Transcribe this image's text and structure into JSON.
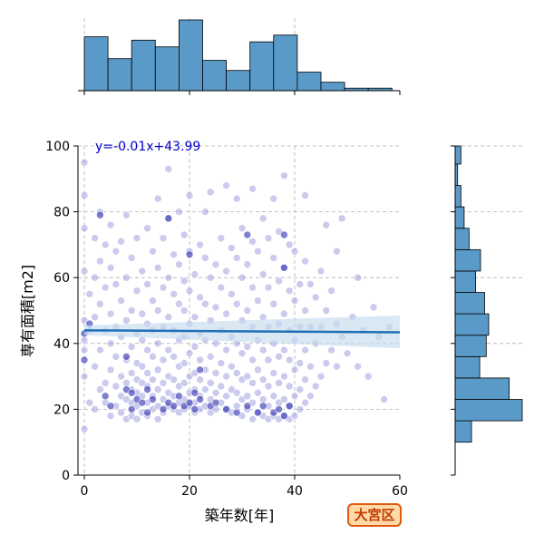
{
  "chart_data": {
    "type": "scatter",
    "xlabel": "築年数[年]",
    "ylabel": "専有面積[m2]",
    "xlim": [
      -1,
      60
    ],
    "ylim": [
      0,
      100
    ],
    "x_ticks": [
      "0",
      "20",
      "40",
      "60"
    ],
    "y_ticks": [
      "0",
      "20",
      "40",
      "60",
      "80",
      "100"
    ],
    "grid": true,
    "regression": {
      "label": "y=-0.01x+43.99",
      "slope": -0.01,
      "intercept": 43.99,
      "x_range": [
        0,
        60
      ],
      "ci_low_start": 42.5,
      "ci_high_start": 45.5,
      "ci_low_end": 38.5,
      "ci_high_end": 48.5
    },
    "region_label": "大宮区",
    "hist_x": {
      "bin_edges": [
        0,
        4.5,
        9,
        13.5,
        18,
        22.5,
        27,
        31.5,
        36,
        40.5,
        45,
        49.5,
        54,
        58.5
      ],
      "counts": [
        64,
        38,
        60,
        52,
        84,
        36,
        24,
        58,
        66,
        22,
        10,
        3,
        3
      ],
      "max": 84
    },
    "hist_y": {
      "bin_edges": [
        10,
        16.5,
        23,
        29.5,
        36,
        42.5,
        49,
        55.5,
        62,
        68.5,
        75,
        81.5,
        88,
        94.5,
        101
      ],
      "counts": [
        20,
        82,
        66,
        30,
        38,
        41,
        36,
        25,
        31,
        17,
        11,
        7,
        3,
        7
      ],
      "max": 82
    },
    "points": [
      [
        0,
        14
      ],
      [
        0,
        95
      ],
      [
        0,
        85
      ],
      [
        0,
        38
      ],
      [
        0,
        47
      ],
      [
        0,
        62
      ],
      [
        0,
        75
      ],
      [
        1,
        22
      ],
      [
        1,
        55
      ],
      [
        0,
        30
      ],
      [
        1,
        44
      ],
      [
        0,
        41
      ],
      [
        2,
        20
      ],
      [
        2,
        33
      ],
      [
        2,
        48
      ],
      [
        2,
        60
      ],
      [
        2,
        72
      ],
      [
        3,
        26
      ],
      [
        3,
        38
      ],
      [
        3,
        52
      ],
      [
        3,
        65
      ],
      [
        3,
        80
      ],
      [
        4,
        22
      ],
      [
        4,
        28
      ],
      [
        4,
        44
      ],
      [
        4,
        57
      ],
      [
        4,
        70
      ],
      [
        5,
        18
      ],
      [
        5,
        32
      ],
      [
        5,
        40
      ],
      [
        5,
        49
      ],
      [
        5,
        63
      ],
      [
        5,
        76
      ],
      [
        6,
        21
      ],
      [
        6,
        27
      ],
      [
        6,
        36
      ],
      [
        6,
        45
      ],
      [
        6,
        58
      ],
      [
        6,
        68
      ],
      [
        7,
        19
      ],
      [
        7,
        24
      ],
      [
        7,
        30
      ],
      [
        7,
        42
      ],
      [
        7,
        53
      ],
      [
        7,
        71
      ],
      [
        8,
        17
      ],
      [
        8,
        23
      ],
      [
        8,
        28
      ],
      [
        8,
        35
      ],
      [
        8,
        47
      ],
      [
        8,
        60
      ],
      [
        8,
        79
      ],
      [
        9,
        18
      ],
      [
        9,
        22
      ],
      [
        9,
        26
      ],
      [
        9,
        31
      ],
      [
        9,
        39
      ],
      [
        9,
        50
      ],
      [
        9,
        66
      ],
      [
        10,
        17
      ],
      [
        10,
        21
      ],
      [
        10,
        25
      ],
      [
        10,
        29
      ],
      [
        10,
        34
      ],
      [
        10,
        43
      ],
      [
        10,
        56
      ],
      [
        10,
        72
      ],
      [
        11,
        19
      ],
      [
        11,
        24
      ],
      [
        11,
        28
      ],
      [
        11,
        33
      ],
      [
        11,
        41
      ],
      [
        11,
        49
      ],
      [
        11,
        62
      ],
      [
        12,
        18
      ],
      [
        12,
        22
      ],
      [
        12,
        27
      ],
      [
        12,
        31
      ],
      [
        12,
        38
      ],
      [
        12,
        46
      ],
      [
        12,
        58
      ],
      [
        12,
        75
      ],
      [
        13,
        20
      ],
      [
        13,
        24
      ],
      [
        13,
        29
      ],
      [
        13,
        36
      ],
      [
        13,
        44
      ],
      [
        13,
        53
      ],
      [
        13,
        68
      ],
      [
        14,
        17
      ],
      [
        14,
        21
      ],
      [
        14,
        26
      ],
      [
        14,
        32
      ],
      [
        14,
        40
      ],
      [
        14,
        50
      ],
      [
        14,
        63
      ],
      [
        14,
        84
      ],
      [
        15,
        19
      ],
      [
        15,
        23
      ],
      [
        15,
        28
      ],
      [
        15,
        35
      ],
      [
        15,
        45
      ],
      [
        15,
        57
      ],
      [
        15,
        72
      ],
      [
        16,
        21
      ],
      [
        16,
        25
      ],
      [
        16,
        30
      ],
      [
        16,
        38
      ],
      [
        16,
        48
      ],
      [
        16,
        60
      ],
      [
        16,
        78
      ],
      [
        16,
        93
      ],
      [
        17,
        20
      ],
      [
        17,
        24
      ],
      [
        17,
        29
      ],
      [
        17,
        36
      ],
      [
        17,
        44
      ],
      [
        17,
        55
      ],
      [
        17,
        67
      ],
      [
        18,
        19
      ],
      [
        18,
        22
      ],
      [
        18,
        27
      ],
      [
        18,
        33
      ],
      [
        18,
        41
      ],
      [
        18,
        52
      ],
      [
        18,
        64
      ],
      [
        18,
        80
      ],
      [
        19,
        20
      ],
      [
        19,
        23
      ],
      [
        19,
        28
      ],
      [
        19,
        34
      ],
      [
        19,
        42
      ],
      [
        19,
        50
      ],
      [
        19,
        59
      ],
      [
        19,
        73
      ],
      [
        20,
        21
      ],
      [
        20,
        25
      ],
      [
        20,
        30
      ],
      [
        20,
        37
      ],
      [
        20,
        46
      ],
      [
        20,
        56
      ],
      [
        20,
        68
      ],
      [
        20,
        85
      ],
      [
        21,
        19
      ],
      [
        21,
        22
      ],
      [
        21,
        26
      ],
      [
        21,
        31
      ],
      [
        21,
        39
      ],
      [
        21,
        48
      ],
      [
        21,
        61
      ],
      [
        22,
        20
      ],
      [
        22,
        24
      ],
      [
        22,
        29
      ],
      [
        22,
        35
      ],
      [
        22,
        43
      ],
      [
        22,
        54
      ],
      [
        22,
        70
      ],
      [
        23,
        21
      ],
      [
        23,
        26
      ],
      [
        23,
        32
      ],
      [
        23,
        41
      ],
      [
        23,
        52
      ],
      [
        23,
        66
      ],
      [
        23,
        80
      ],
      [
        24,
        19
      ],
      [
        24,
        23
      ],
      [
        24,
        28
      ],
      [
        24,
        36
      ],
      [
        24,
        47
      ],
      [
        24,
        60
      ],
      [
        24,
        86
      ],
      [
        25,
        20
      ],
      [
        25,
        25
      ],
      [
        25,
        31
      ],
      [
        25,
        40
      ],
      [
        25,
        51
      ],
      [
        25,
        64
      ],
      [
        26,
        22
      ],
      [
        26,
        27
      ],
      [
        26,
        34
      ],
      [
        26,
        44
      ],
      [
        26,
        57
      ],
      [
        26,
        72
      ],
      [
        27,
        20
      ],
      [
        27,
        24
      ],
      [
        27,
        30
      ],
      [
        27,
        38
      ],
      [
        27,
        49
      ],
      [
        27,
        62
      ],
      [
        27,
        88
      ],
      [
        28,
        19
      ],
      [
        28,
        26
      ],
      [
        28,
        33
      ],
      [
        28,
        42
      ],
      [
        28,
        55
      ],
      [
        28,
        69
      ],
      [
        29,
        21
      ],
      [
        29,
        25
      ],
      [
        29,
        31
      ],
      [
        29,
        40
      ],
      [
        29,
        52
      ],
      [
        29,
        66
      ],
      [
        29,
        84
      ],
      [
        30,
        18
      ],
      [
        30,
        23
      ],
      [
        30,
        29
      ],
      [
        30,
        37
      ],
      [
        30,
        47
      ],
      [
        30,
        60
      ],
      [
        30,
        75
      ],
      [
        31,
        20
      ],
      [
        31,
        24
      ],
      [
        31,
        30
      ],
      [
        31,
        39
      ],
      [
        31,
        50
      ],
      [
        31,
        64
      ],
      [
        32,
        17
      ],
      [
        32,
        22
      ],
      [
        32,
        28
      ],
      [
        32,
        35
      ],
      [
        32,
        45
      ],
      [
        32,
        57
      ],
      [
        32,
        71
      ],
      [
        32,
        87
      ],
      [
        33,
        19
      ],
      [
        33,
        25
      ],
      [
        33,
        32
      ],
      [
        33,
        41
      ],
      [
        33,
        53
      ],
      [
        33,
        68
      ],
      [
        34,
        18
      ],
      [
        34,
        23
      ],
      [
        34,
        29
      ],
      [
        34,
        38
      ],
      [
        34,
        48
      ],
      [
        34,
        61
      ],
      [
        34,
        78
      ],
      [
        35,
        17
      ],
      [
        35,
        21
      ],
      [
        35,
        27
      ],
      [
        35,
        35
      ],
      [
        35,
        45
      ],
      [
        35,
        57
      ],
      [
        35,
        72
      ],
      [
        36,
        18
      ],
      [
        36,
        24
      ],
      [
        36,
        31
      ],
      [
        36,
        40
      ],
      [
        36,
        52
      ],
      [
        36,
        66
      ],
      [
        36,
        84
      ],
      [
        37,
        17
      ],
      [
        37,
        22
      ],
      [
        37,
        28
      ],
      [
        37,
        36
      ],
      [
        37,
        46
      ],
      [
        37,
        59
      ],
      [
        37,
        74
      ],
      [
        38,
        18
      ],
      [
        38,
        23
      ],
      [
        38,
        30
      ],
      [
        38,
        38
      ],
      [
        38,
        49
      ],
      [
        38,
        63
      ],
      [
        38,
        91
      ],
      [
        39,
        17
      ],
      [
        39,
        21
      ],
      [
        39,
        27
      ],
      [
        39,
        35
      ],
      [
        39,
        44
      ],
      [
        39,
        56
      ],
      [
        39,
        70
      ],
      [
        40,
        18
      ],
      [
        40,
        24
      ],
      [
        40,
        32
      ],
      [
        40,
        41
      ],
      [
        40,
        53
      ],
      [
        40,
        68
      ],
      [
        41,
        20
      ],
      [
        41,
        26
      ],
      [
        41,
        34
      ],
      [
        41,
        45
      ],
      [
        41,
        58
      ],
      [
        42,
        22
      ],
      [
        42,
        29
      ],
      [
        42,
        38
      ],
      [
        42,
        50
      ],
      [
        42,
        65
      ],
      [
        42,
        85
      ],
      [
        43,
        24
      ],
      [
        43,
        33
      ],
      [
        43,
        45
      ],
      [
        43,
        58
      ],
      [
        44,
        27
      ],
      [
        44,
        40
      ],
      [
        44,
        54
      ],
      [
        45,
        30
      ],
      [
        45,
        45
      ],
      [
        45,
        62
      ],
      [
        46,
        34
      ],
      [
        46,
        50
      ],
      [
        46,
        76
      ],
      [
        47,
        38
      ],
      [
        47,
        56
      ],
      [
        48,
        33
      ],
      [
        48,
        46
      ],
      [
        48,
        68
      ],
      [
        49,
        42
      ],
      [
        49,
        78
      ],
      [
        50,
        37
      ],
      [
        51,
        48
      ],
      [
        52,
        33
      ],
      [
        52,
        60
      ],
      [
        53,
        44
      ],
      [
        54,
        30
      ],
      [
        55,
        51
      ],
      [
        56,
        42
      ],
      [
        57,
        23
      ],
      [
        58,
        45
      ]
    ],
    "dark_points": [
      [
        0,
        43
      ],
      [
        0,
        35
      ],
      [
        1,
        46
      ],
      [
        4,
        24
      ],
      [
        5,
        21
      ],
      [
        8,
        26
      ],
      [
        9,
        20
      ],
      [
        9,
        25
      ],
      [
        10,
        23
      ],
      [
        11,
        22
      ],
      [
        12,
        26
      ],
      [
        12,
        19
      ],
      [
        13,
        23
      ],
      [
        15,
        20
      ],
      [
        16,
        22
      ],
      [
        17,
        21
      ],
      [
        18,
        24
      ],
      [
        19,
        21
      ],
      [
        20,
        22
      ],
      [
        21,
        20
      ],
      [
        21,
        25
      ],
      [
        22,
        23
      ],
      [
        24,
        21
      ],
      [
        25,
        22
      ],
      [
        27,
        20
      ],
      [
        29,
        19
      ],
      [
        31,
        21
      ],
      [
        33,
        19
      ],
      [
        34,
        21
      ],
      [
        36,
        19
      ],
      [
        37,
        20
      ],
      [
        38,
        18
      ],
      [
        39,
        21
      ],
      [
        3,
        79
      ],
      [
        16,
        78
      ],
      [
        20,
        67
      ],
      [
        31,
        73
      ],
      [
        38,
        63
      ],
      [
        38,
        73
      ],
      [
        8,
        36
      ],
      [
        22,
        32
      ]
    ]
  }
}
